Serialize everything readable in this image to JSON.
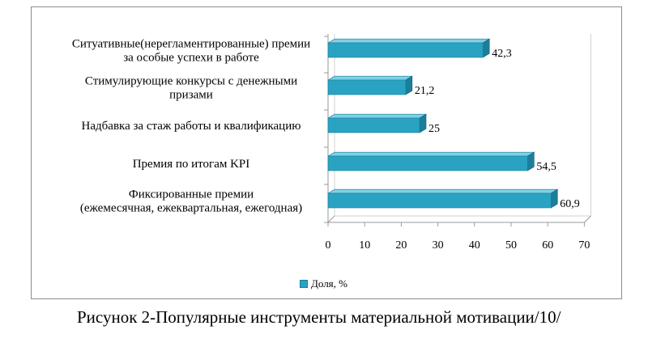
{
  "chart_data": {
    "type": "bar",
    "orientation": "horizontal",
    "categories": [
      [
        "Ситуативные(нерегламентированные) премии",
        "за особые успехи в работе"
      ],
      [
        "Стимулирующие конкурсы с денежными",
        "призами"
      ],
      [
        "Надбавка за стаж работы и квалификацию"
      ],
      [
        "Премия по итогам KPI"
      ],
      [
        "Фиксированные премии",
        "(ежемесячная, ежеквартальная, ежегодная)"
      ]
    ],
    "series": [
      {
        "name": "Доля, %",
        "values": [
          42.3,
          21.2,
          25,
          54.5,
          60.9
        ],
        "value_labels": [
          "42,3",
          "21,2",
          "25",
          "54,5",
          "60,9"
        ]
      }
    ],
    "x_ticks": [
      "0",
      "10",
      "20",
      "30",
      "40",
      "50",
      "60",
      "70"
    ],
    "xlim": [
      0,
      70
    ],
    "grid": false,
    "legend_position": "bottom",
    "colors": {
      "bar": "#2aa3c3",
      "bar_top": "#7fd0e6",
      "bar_side": "#1b7f9b",
      "axis": "#9a9a9a"
    }
  },
  "legend": {
    "label": "Доля, %"
  },
  "caption": "Рисунок 2-Популярные инструменты материальной мотивации/10/"
}
